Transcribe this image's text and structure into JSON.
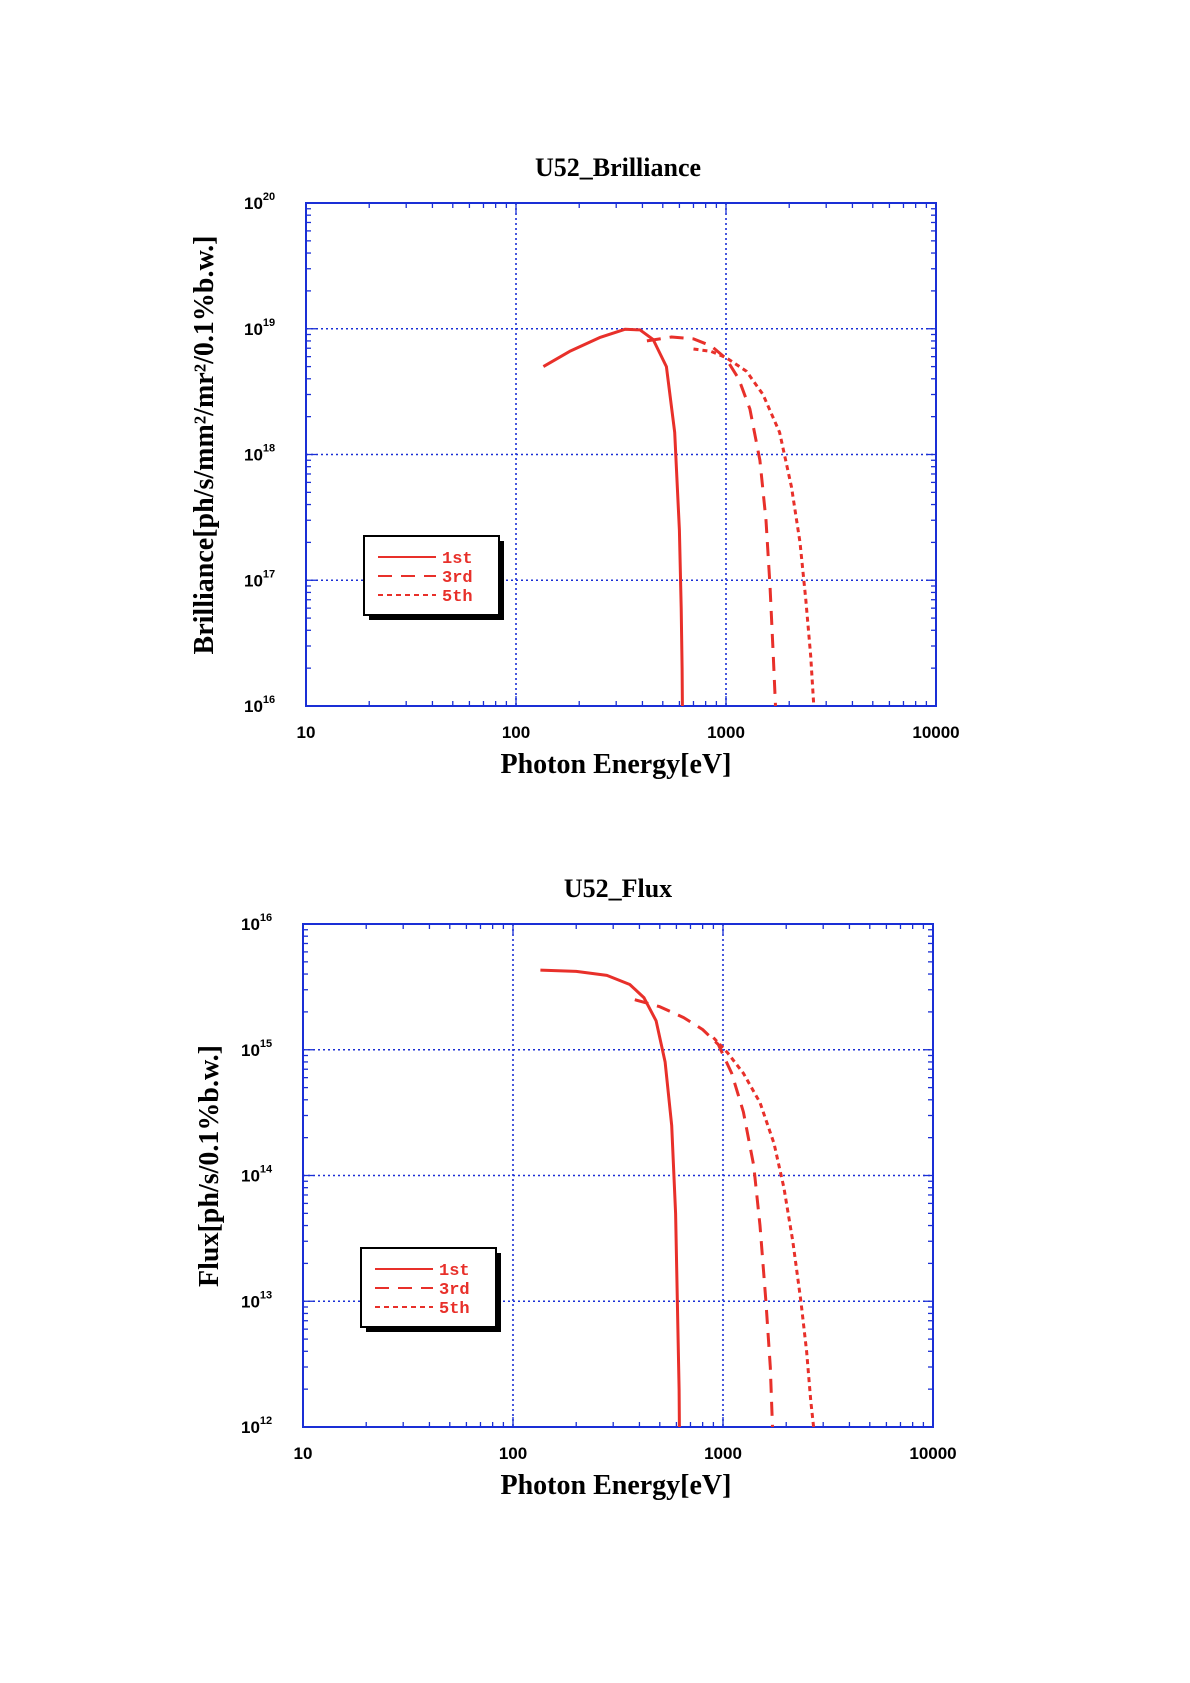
{
  "chart_data": [
    {
      "id": "brilliance",
      "type": "line",
      "title": "U52_Brilliance",
      "xlabel": "Photon Energy[eV]",
      "ylabel": "Brilliance[ph/s/mm²/mr²/0.1%b.w.]",
      "xscale": "log",
      "yscale": "log",
      "xlim": [
        10,
        10000
      ],
      "ylim": [
        1e+16,
        1e+20
      ],
      "x_ticks": [
        "10",
        "100",
        "1000",
        "10000"
      ],
      "y_ticks": [
        {
          "base": "10",
          "exp": "16"
        },
        {
          "base": "10",
          "exp": "17"
        },
        {
          "base": "10",
          "exp": "18"
        },
        {
          "base": "10",
          "exp": "19"
        },
        {
          "base": "10",
          "exp": "20"
        }
      ],
      "grid": true,
      "legend": "lower-left",
      "colors": {
        "series": "#e8302a",
        "grid": "#1a2fd6",
        "frame": "#1a2fd6"
      },
      "series": [
        {
          "name": "1st",
          "dash": "solid",
          "x": [
            135,
            180,
            250,
            330,
            390,
            450,
            520,
            570,
            600,
            612,
            618,
            620
          ],
          "y": [
            5e+18,
            6.6e+18,
            8.5e+18,
            9.9e+18,
            9.8e+18,
            8.2e+18,
            5e+18,
            1.5e+18,
            2.5e+17,
            6e+16,
            2e+16,
            1e+16
          ]
        },
        {
          "name": "3rd",
          "dash": "dashed",
          "x": [
            420,
            550,
            700,
            850,
            1000,
            1150,
            1300,
            1450,
            1550,
            1620,
            1680,
            1720
          ],
          "y": [
            8e+18,
            8.6e+18,
            8.3e+18,
            7.3e+18,
            5.8e+18,
            4e+18,
            2.3e+18,
            9e+17,
            3e+17,
            9e+16,
            2.5e+16,
            1e+16
          ]
        },
        {
          "name": "5th",
          "dash": "dotted",
          "x": [
            700,
            850,
            1000,
            1250,
            1500,
            1800,
            2050,
            2250,
            2400,
            2530,
            2620
          ],
          "y": [
            6.9e+18,
            6.6e+18,
            5.9e+18,
            4.6e+18,
            3e+18,
            1.5e+18,
            5.5e+17,
            2e+17,
            7e+16,
            2.5e+16,
            1e+16
          ]
        }
      ]
    },
    {
      "id": "flux",
      "type": "line",
      "title": "U52_Flux",
      "xlabel": "Photon Energy[eV]",
      "ylabel": "Flux[ph/s/0.1%b.w.]",
      "xscale": "log",
      "yscale": "log",
      "xlim": [
        10,
        10000
      ],
      "ylim": [
        1000000000000.0,
        1e+16
      ],
      "x_ticks": [
        "10",
        "100",
        "1000",
        "10000"
      ],
      "y_ticks": [
        {
          "base": "10",
          "exp": "12"
        },
        {
          "base": "10",
          "exp": "13"
        },
        {
          "base": "10",
          "exp": "14"
        },
        {
          "base": "10",
          "exp": "15"
        },
        {
          "base": "10",
          "exp": "16"
        }
      ],
      "grid": true,
      "legend": "lower-left",
      "colors": {
        "series": "#e8302a",
        "grid": "#1a2fd6",
        "frame": "#1a2fd6"
      },
      "series": [
        {
          "name": "1st",
          "dash": "solid",
          "x": [
            135,
            200,
            280,
            360,
            420,
            480,
            530,
            570,
            595,
            610,
            618,
            620
          ],
          "y": [
            4300000000000000.0,
            4200000000000000.0,
            3900000000000000.0,
            3300000000000000.0,
            2600000000000000.0,
            1700000000000000.0,
            800000000000000.0,
            250000000000000.0,
            50000000000000.0,
            6000000000000.0,
            2000000000000.0,
            1000000000000.0
          ]
        },
        {
          "name": "3rd",
          "dash": "dashed",
          "x": [
            380,
            500,
            650,
            800,
            950,
            1100,
            1250,
            1400,
            1500,
            1600,
            1680,
            1720
          ],
          "y": [
            2500000000000000.0,
            2200000000000000.0,
            1800000000000000.0,
            1450000000000000.0,
            1100000000000000.0,
            650000000000000.0,
            320000000000000.0,
            120000000000000.0,
            40000000000000.0,
            10000000000000.0,
            3000000000000.0,
            1000000000000.0
          ]
        },
        {
          "name": "5th",
          "dash": "dotted",
          "x": [
            900,
            1050,
            1250,
            1500,
            1750,
            1950,
            2150,
            2350,
            2500,
            2620,
            2700
          ],
          "y": [
            1250000000000000.0,
            950000000000000.0,
            650000000000000.0,
            380000000000000.0,
            180000000000000.0,
            80000000000000.0,
            30000000000000.0,
            10000000000000.0,
            4000000000000.0,
            1600000000000.0,
            1000000000000.0
          ]
        }
      ]
    }
  ]
}
